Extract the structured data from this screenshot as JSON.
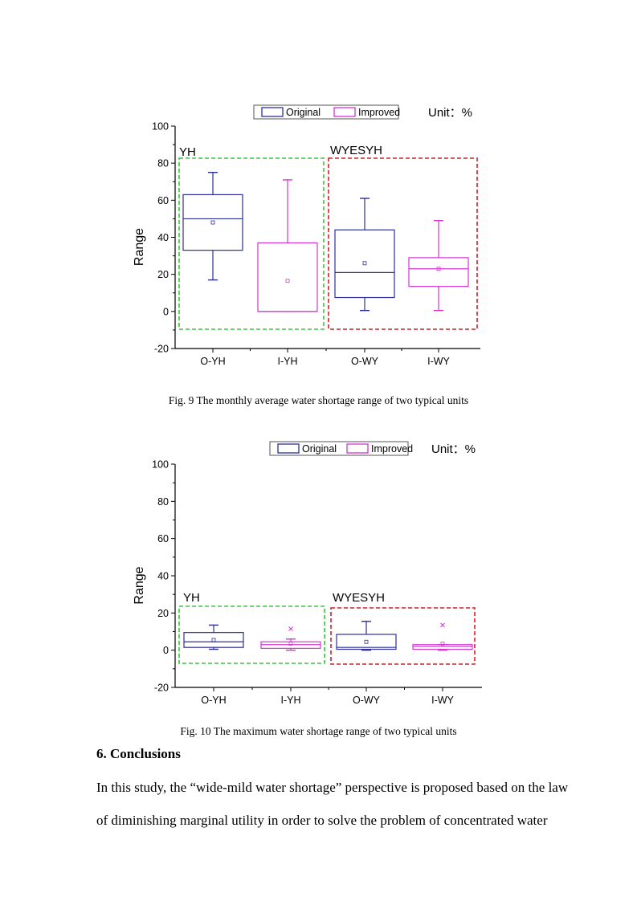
{
  "chart_data": [
    {
      "type": "box",
      "unit_label": "Unit：%",
      "ylabel": "Range",
      "ylim": [
        -20,
        100
      ],
      "yticks": [
        "-20",
        "0",
        "20",
        "40",
        "60",
        "80",
        "100"
      ],
      "categories": [
        "O-YH",
        "I-YH",
        "O-WY",
        "I-WY"
      ],
      "legend": [
        "Original",
        "Improved"
      ],
      "legend_colors": [
        "#2b2f9a",
        "#d534d5"
      ],
      "groups": [
        "YH",
        "WYESYH"
      ],
      "group_colors": [
        "#33cc33",
        "#d02028"
      ],
      "boxes": [
        {
          "name": "O-YH",
          "series": "Original",
          "whisker_low": 17,
          "q1": 33,
          "median": 50,
          "q3": 63,
          "whisker_high": 75,
          "mean": 48,
          "outliers": []
        },
        {
          "name": "I-YH",
          "series": "Improved",
          "whisker_low": 0,
          "q1": 0,
          "median": 0,
          "q3": 37,
          "whisker_high": 71,
          "mean": 16.5,
          "outliers": []
        },
        {
          "name": "O-WY",
          "series": "Original",
          "whisker_low": 0.5,
          "q1": 7.5,
          "median": 21,
          "q3": 44,
          "whisker_high": 61,
          "mean": 26,
          "outliers": []
        },
        {
          "name": "I-WY",
          "series": "Improved",
          "whisker_low": 0.5,
          "q1": 13.5,
          "median": 23,
          "q3": 29,
          "whisker_high": 49,
          "mean": 23,
          "outliers": []
        }
      ]
    },
    {
      "type": "box",
      "unit_label": "Unit：%",
      "ylabel": "Range",
      "ylim": [
        -20,
        100
      ],
      "yticks": [
        "-20",
        "0",
        "20",
        "40",
        "60",
        "80",
        "100"
      ],
      "categories": [
        "O-YH",
        "I-YH",
        "O-WY",
        "I-WY"
      ],
      "legend": [
        "Original",
        "Improved"
      ],
      "legend_colors": [
        "#2b2f9a",
        "#d534d5"
      ],
      "groups": [
        "YH",
        "WYESYH"
      ],
      "group_colors": [
        "#33cc33",
        "#d02028"
      ],
      "boxes": [
        {
          "name": "O-YH",
          "series": "Original",
          "whisker_low": 0.5,
          "q1": 1.5,
          "median": 4.5,
          "q3": 9.5,
          "whisker_high": 13.5,
          "mean": 5.5,
          "outliers": []
        },
        {
          "name": "I-YH",
          "series": "Improved",
          "whisker_low": 0,
          "q1": 1,
          "median": 3,
          "q3": 4.5,
          "whisker_high": 6,
          "mean": 3.5,
          "outliers": [
            11.5
          ]
        },
        {
          "name": "O-WY",
          "series": "Original",
          "whisker_low": 0,
          "q1": 0.5,
          "median": 1.5,
          "q3": 8.5,
          "whisker_high": 15.5,
          "mean": 4.5,
          "outliers": []
        },
        {
          "name": "I-WY",
          "series": "Improved",
          "whisker_low": 0,
          "q1": 0.5,
          "median": 2,
          "q3": 3,
          "whisker_high": 3,
          "mean": 3.5,
          "outliers": [
            13.5
          ]
        }
      ]
    }
  ],
  "captions": {
    "fig9": "Fig. 9 The monthly average water shortage range of two typical units",
    "fig10": "Fig. 10 The maximum water shortage range of two typical units"
  },
  "section": {
    "heading": "6. Conclusions",
    "lines": [
      "In this study, the “wide-mild water shortage” perspective is proposed based on the law",
      "of diminishing marginal utility in order to solve the problem of concentrated water"
    ]
  }
}
